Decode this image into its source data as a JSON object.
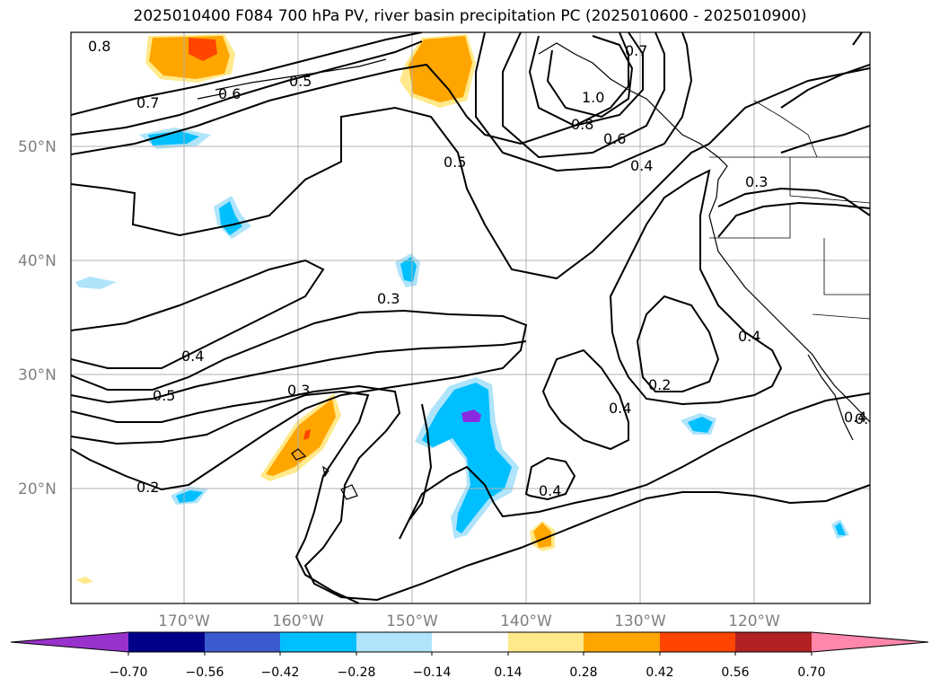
{
  "title": "2025010400 F084 700 hPa PV, river basin precipitation PC (2025010600 - 2025010900)",
  "map": {
    "lat_labels": [
      "50°N",
      "40°N",
      "30°N",
      "20°N"
    ],
    "lon_labels": [
      "170°W",
      "160°W",
      "150°W",
      "140°W",
      "130°W",
      "120°W"
    ]
  },
  "contour_labels": [
    "0.8",
    "0.7",
    "0.6",
    "0.5",
    "0.7",
    "1.0",
    "0.8",
    "0.6",
    "0.4",
    "0.3",
    "0.5",
    "0.4",
    "0.3",
    "0.4",
    "0.5",
    "0.3",
    "0.2",
    "0.2",
    "0.4",
    "0.4",
    "0.4",
    "0.2"
  ],
  "colorbar": {
    "tick_labels": [
      "−0.70",
      "−0.56",
      "−0.42",
      "−0.28",
      "−0.14",
      "0.14",
      "0.28",
      "0.42",
      "0.56",
      "0.70"
    ],
    "colors": [
      "#9932cc",
      "#00008b",
      "#3a5bd0",
      "#00bfff",
      "#afe4fa",
      "#ffffff",
      "#ffe98a",
      "#ffa500",
      "#ff4500",
      "#b22222",
      "#ff87ab"
    ]
  },
  "fill_colors": {
    "light_orange": "#ffe98a",
    "orange": "#ffa500",
    "red_orange": "#ff4500",
    "light_blue": "#afe4fa",
    "blue": "#00bfff",
    "purple": "#8a2be2"
  }
}
